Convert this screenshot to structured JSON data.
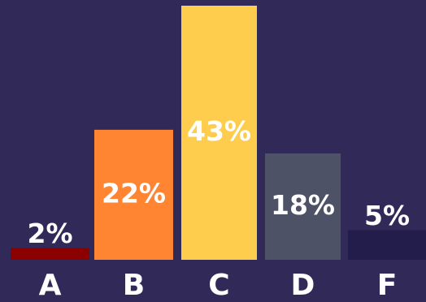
{
  "chart_data": {
    "type": "bar",
    "categories": [
      "A",
      "B",
      "C",
      "D",
      "F"
    ],
    "values": [
      2,
      22,
      43,
      18,
      5
    ],
    "value_labels": [
      "2%",
      "22%",
      "43%",
      "18%",
      "5%"
    ],
    "colors": [
      "#8b0000",
      "#ff8533",
      "#ffcd4d",
      "#4e5266",
      "#231d4b"
    ],
    "title": "",
    "xlabel": "",
    "ylabel": "",
    "ylim": [
      0,
      43
    ],
    "grid": false,
    "legend": "none"
  },
  "style": {
    "background": "#312a59",
    "label_color": "#ffffff"
  }
}
